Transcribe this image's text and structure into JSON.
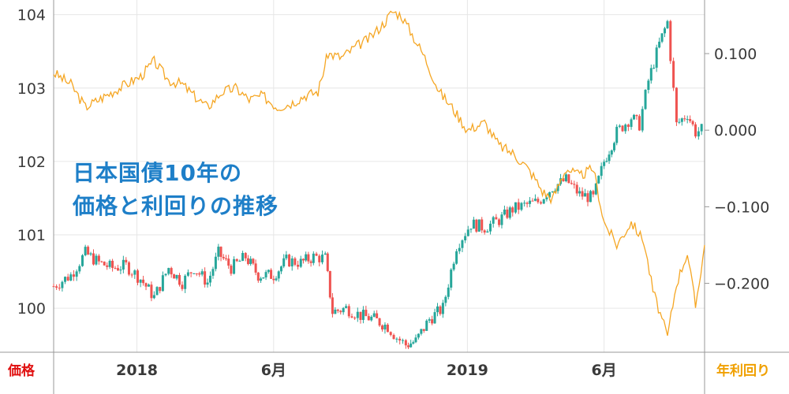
{
  "title_lines": [
    "日本国債10年の",
    "価格と利回りの推移"
  ],
  "labels": {
    "left_axis": "価格",
    "right_axis": "年利回り"
  },
  "colors": {
    "price_up": "#26a69a",
    "price_down": "#ef5350",
    "yield": "#f5a623",
    "title": "#1e7fc8",
    "grid": "#e6e6e6"
  },
  "chart_data": {
    "type": "line",
    "x_ticks": [
      "2018",
      "6月",
      "2019",
      "6月"
    ],
    "x_tick_dates": [
      "2018-01-01",
      "2018-06-01",
      "2019-01-01",
      "2019-06-01"
    ],
    "x_range": [
      "2017-10-01",
      "2019-09-20"
    ],
    "left_axis": {
      "ticks": [
        "100",
        "101",
        "102",
        "103",
        "104"
      ],
      "ylim": [
        99.4,
        104.2
      ]
    },
    "right_axis": {
      "ticks": [
        "0.100",
        "0.000",
        "−0.100",
        "−0.200"
      ],
      "ylim": [
        -0.29,
        0.17
      ]
    },
    "series": [
      {
        "axis": "left",
        "style": "candlestick",
        "points": [
          [
            "2017-10-01",
            100.3
          ],
          [
            "2017-10-20",
            100.45
          ],
          [
            "2017-11-05",
            100.75
          ],
          [
            "2017-11-20",
            100.62
          ],
          [
            "2017-12-05",
            100.55
          ],
          [
            "2017-12-20",
            100.58
          ],
          [
            "2018-01-05",
            100.4
          ],
          [
            "2018-01-20",
            100.15
          ],
          [
            "2018-02-05",
            100.55
          ],
          [
            "2018-02-20",
            100.35
          ],
          [
            "2018-03-05",
            100.55
          ],
          [
            "2018-03-20",
            100.35
          ],
          [
            "2018-04-01",
            100.75
          ],
          [
            "2018-04-15",
            100.55
          ],
          [
            "2018-05-01",
            100.7
          ],
          [
            "2018-05-15",
            100.45
          ],
          [
            "2018-06-01",
            100.45
          ],
          [
            "2018-06-15",
            100.65
          ],
          [
            "2018-07-01",
            100.62
          ],
          [
            "2018-07-15",
            100.7
          ],
          [
            "2018-07-28",
            100.68
          ],
          [
            "2018-08-05",
            99.95
          ],
          [
            "2018-08-20",
            100.0
          ],
          [
            "2018-09-05",
            99.9
          ],
          [
            "2018-09-20",
            99.85
          ],
          [
            "2018-10-05",
            99.75
          ],
          [
            "2018-10-15",
            99.6
          ],
          [
            "2018-10-25",
            99.5
          ],
          [
            "2018-11-05",
            99.55
          ],
          [
            "2018-11-20",
            99.85
          ],
          [
            "2018-12-05",
            100.0
          ],
          [
            "2018-12-20",
            100.85
          ],
          [
            "2019-01-05",
            101.15
          ],
          [
            "2019-01-20",
            101.1
          ],
          [
            "2019-02-05",
            101.2
          ],
          [
            "2019-02-20",
            101.35
          ],
          [
            "2019-03-05",
            101.4
          ],
          [
            "2019-03-20",
            101.45
          ],
          [
            "2019-04-05",
            101.65
          ],
          [
            "2019-04-20",
            101.75
          ],
          [
            "2019-05-05",
            101.55
          ],
          [
            "2019-05-20",
            101.5
          ],
          [
            "2019-06-01",
            102.0
          ],
          [
            "2019-06-15",
            102.4
          ],
          [
            "2019-07-01",
            102.6
          ],
          [
            "2019-07-10",
            102.5
          ],
          [
            "2019-07-20",
            103.1
          ],
          [
            "2019-08-01",
            103.6
          ],
          [
            "2019-08-10",
            103.9
          ],
          [
            "2019-08-20",
            102.5
          ],
          [
            "2019-09-01",
            102.65
          ],
          [
            "2019-09-10",
            102.4
          ],
          [
            "2019-09-20",
            102.45
          ]
        ]
      },
      {
        "axis": "right",
        "style": "line",
        "points": [
          [
            "2017-10-01",
            0.075
          ],
          [
            "2017-10-20",
            0.06
          ],
          [
            "2017-11-05",
            0.03
          ],
          [
            "2017-11-20",
            0.04
          ],
          [
            "2017-12-05",
            0.05
          ],
          [
            "2017-12-20",
            0.06
          ],
          [
            "2018-01-05",
            0.07
          ],
          [
            "2018-01-20",
            0.09
          ],
          [
            "2018-02-05",
            0.065
          ],
          [
            "2018-02-20",
            0.06
          ],
          [
            "2018-03-05",
            0.045
          ],
          [
            "2018-03-20",
            0.03
          ],
          [
            "2018-04-05",
            0.05
          ],
          [
            "2018-04-20",
            0.055
          ],
          [
            "2018-05-05",
            0.04
          ],
          [
            "2018-05-20",
            0.045
          ],
          [
            "2018-06-05",
            0.03
          ],
          [
            "2018-06-20",
            0.035
          ],
          [
            "2018-07-05",
            0.045
          ],
          [
            "2018-07-20",
            0.05
          ],
          [
            "2018-07-31",
            0.1
          ],
          [
            "2018-08-15",
            0.095
          ],
          [
            "2018-09-01",
            0.11
          ],
          [
            "2018-09-15",
            0.12
          ],
          [
            "2018-10-01",
            0.14
          ],
          [
            "2018-10-10",
            0.155
          ],
          [
            "2018-10-20",
            0.15
          ],
          [
            "2018-11-01",
            0.125
          ],
          [
            "2018-11-15",
            0.095
          ],
          [
            "2018-12-01",
            0.05
          ],
          [
            "2018-12-15",
            0.03
          ],
          [
            "2019-01-01",
            0.0
          ],
          [
            "2019-01-20",
            0.01
          ],
          [
            "2019-02-05",
            -0.02
          ],
          [
            "2019-02-20",
            -0.03
          ],
          [
            "2019-03-05",
            -0.045
          ],
          [
            "2019-03-15",
            -0.06
          ],
          [
            "2019-03-25",
            -0.08
          ],
          [
            "2019-04-05",
            -0.09
          ],
          [
            "2019-04-20",
            -0.05
          ],
          [
            "2019-05-05",
            -0.06
          ],
          [
            "2019-05-20",
            -0.05
          ],
          [
            "2019-06-01",
            -0.12
          ],
          [
            "2019-06-15",
            -0.15
          ],
          [
            "2019-07-01",
            -0.12
          ],
          [
            "2019-07-15",
            -0.145
          ],
          [
            "2019-07-25",
            -0.21
          ],
          [
            "2019-08-10",
            -0.27
          ],
          [
            "2019-08-20",
            -0.2
          ],
          [
            "2019-09-01",
            -0.16
          ],
          [
            "2019-09-10",
            -0.23
          ],
          [
            "2019-09-20",
            -0.15
          ]
        ]
      }
    ]
  }
}
